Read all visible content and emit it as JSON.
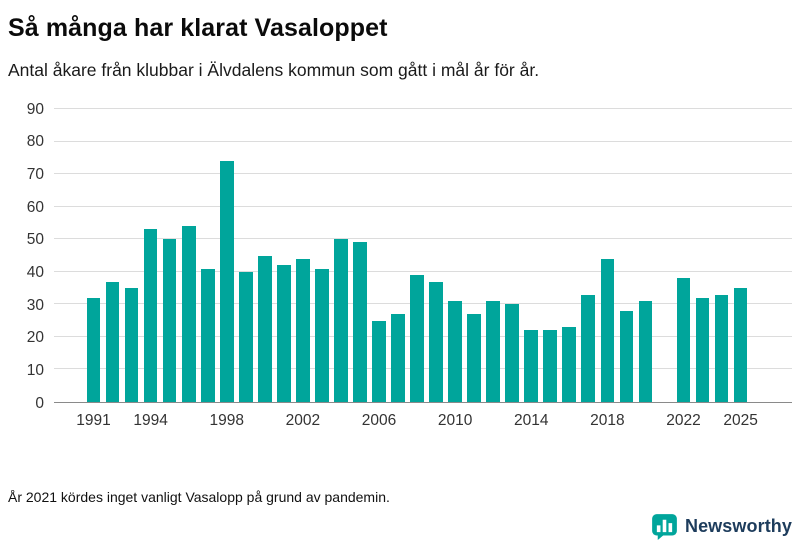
{
  "header": {
    "title": "Så många har klarat Vasaloppet",
    "subtitle": "Antal åkare från klubbar i Älvdalens kommun som gått i mål år för år."
  },
  "footnote": "År 2021 kördes inget vanligt Vasalopp på grund av pandemin.",
  "branding": {
    "name": "Newsworthy",
    "icon": "bar-chart-speech-bubble-icon",
    "accent_color": "#00a59b",
    "text_color": "#1d3c5c"
  },
  "chart_data": {
    "type": "bar",
    "title": "Så många har klarat Vasaloppet",
    "subtitle": "Antal åkare från klubbar i Älvdalens kommun som gått i mål år för år.",
    "xlabel": "",
    "ylabel": "",
    "categories": [
      1991,
      1992,
      1993,
      1994,
      1995,
      1996,
      1997,
      1998,
      1999,
      2000,
      2001,
      2002,
      2003,
      2004,
      2005,
      2006,
      2007,
      2008,
      2009,
      2010,
      2011,
      2012,
      2013,
      2014,
      2015,
      2016,
      2017,
      2018,
      2019,
      2020,
      2021,
      2022,
      2023,
      2024,
      2025
    ],
    "values": [
      32,
      37,
      35,
      53,
      50,
      54,
      41,
      74,
      40,
      45,
      42,
      44,
      41,
      50,
      49,
      25,
      27,
      39,
      37,
      31,
      27,
      31,
      30,
      22,
      22,
      23,
      33,
      44,
      28,
      31,
      null,
      38,
      32,
      33,
      35
    ],
    "missing_years": [
      2021
    ],
    "bar_color": "#00a59b",
    "ylim": [
      0,
      90
    ],
    "ytick_step": 10,
    "xticks": [
      1991,
      1994,
      1998,
      2002,
      2006,
      2010,
      2014,
      2018,
      2022,
      2025
    ],
    "grid": true,
    "grid_color": "#dcdcdc",
    "axis_color": "#8a8a8a",
    "legend": "none"
  }
}
